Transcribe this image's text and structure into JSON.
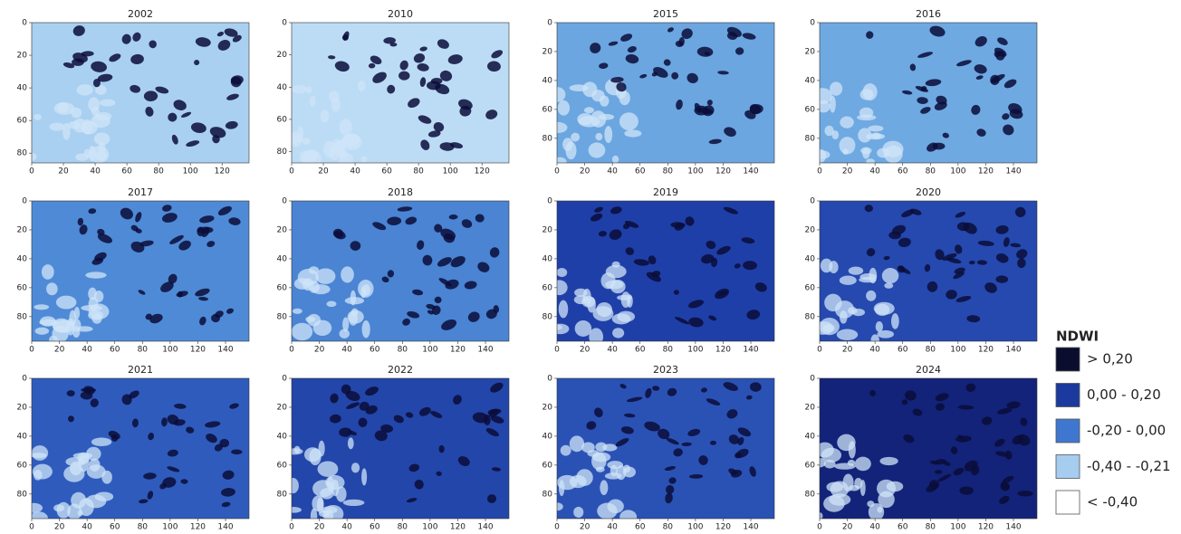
{
  "chart_data": [
    {
      "type": "image",
      "title": "2002",
      "color": "#a9d0f0",
      "xlim": [
        0,
        137
      ],
      "ylim": [
        0,
        86
      ],
      "xticks": [
        0,
        20,
        40,
        60,
        80,
        100,
        120
      ],
      "yticks": [
        0,
        20,
        40,
        60,
        80
      ]
    },
    {
      "type": "image",
      "title": "2010",
      "color": "#bcdcf5",
      "xlim": [
        0,
        137
      ],
      "ylim": [
        0,
        87
      ],
      "xticks": [
        0,
        20,
        40,
        60,
        80,
        100,
        120
      ],
      "yticks": [
        0,
        20,
        40,
        60,
        80
      ]
    },
    {
      "type": "image",
      "title": "2015",
      "color": "#6ba6e0",
      "xlim": [
        0,
        157
      ],
      "ylim": [
        0,
        97
      ],
      "xticks": [
        0,
        20,
        40,
        60,
        80,
        100,
        120,
        140
      ],
      "yticks": [
        0,
        20,
        40,
        60,
        80
      ]
    },
    {
      "type": "image",
      "title": "2016",
      "color": "#6fa9e2",
      "xlim": [
        0,
        157
      ],
      "ylim": [
        0,
        97
      ],
      "xticks": [
        0,
        20,
        40,
        60,
        80,
        100,
        120,
        140
      ],
      "yticks": [
        0,
        20,
        40,
        60,
        80
      ]
    },
    {
      "type": "image",
      "title": "2017",
      "color": "#4f8ad6",
      "xlim": [
        0,
        157
      ],
      "ylim": [
        0,
        97
      ],
      "xticks": [
        0,
        20,
        40,
        60,
        80,
        100,
        120,
        140
      ],
      "yticks": [
        0,
        20,
        40,
        60,
        80
      ]
    },
    {
      "type": "image",
      "title": "2018",
      "color": "#4a84d3",
      "xlim": [
        0,
        157
      ],
      "ylim": [
        0,
        97
      ],
      "xticks": [
        0,
        20,
        40,
        60,
        80,
        100,
        120,
        140
      ],
      "yticks": [
        0,
        20,
        40,
        60,
        80
      ]
    },
    {
      "type": "image",
      "title": "2019",
      "color": "#1f3fa8",
      "xlim": [
        0,
        157
      ],
      "ylim": [
        0,
        97
      ],
      "xticks": [
        0,
        20,
        40,
        60,
        80,
        100,
        120,
        140
      ],
      "yticks": [
        0,
        20,
        40,
        60,
        80
      ]
    },
    {
      "type": "image",
      "title": "2020",
      "color": "#2549ae",
      "xlim": [
        0,
        157
      ],
      "ylim": [
        0,
        97
      ],
      "xticks": [
        0,
        20,
        40,
        60,
        80,
        100,
        120,
        140
      ],
      "yticks": [
        0,
        20,
        40,
        60,
        80
      ]
    },
    {
      "type": "image",
      "title": "2021",
      "color": "#2f5cbc",
      "xlim": [
        0,
        157
      ],
      "ylim": [
        0,
        97
      ],
      "xticks": [
        0,
        20,
        40,
        60,
        80,
        100,
        120,
        140
      ],
      "yticks": [
        0,
        20,
        40,
        60,
        80
      ]
    },
    {
      "type": "image",
      "title": "2022",
      "color": "#2346aa",
      "xlim": [
        0,
        157
      ],
      "ylim": [
        0,
        97
      ],
      "xticks": [
        0,
        20,
        40,
        60,
        80,
        100,
        120,
        140
      ],
      "yticks": [
        0,
        20,
        40,
        60,
        80
      ]
    },
    {
      "type": "image",
      "title": "2023",
      "color": "#2a52b5",
      "xlim": [
        0,
        157
      ],
      "ylim": [
        0,
        97
      ],
      "xticks": [
        0,
        20,
        40,
        60,
        80,
        100,
        120,
        140
      ],
      "yticks": [
        0,
        20,
        40,
        60,
        80
      ]
    },
    {
      "type": "image",
      "title": "2024",
      "color": "#13237a",
      "xlim": [
        0,
        157
      ],
      "ylim": [
        0,
        97
      ],
      "xticks": [
        0,
        20,
        40,
        60,
        80,
        100,
        120,
        140
      ],
      "yticks": [
        0,
        20,
        40,
        60,
        80
      ]
    }
  ],
  "legend": {
    "title": "NDWI",
    "items": [
      {
        "label": "> 0,20",
        "color": "#0b0d2e"
      },
      {
        "label": "0,00 - 0,20",
        "color": "#1c3a9e"
      },
      {
        "label": "-0,20 - 0,00",
        "color": "#3f76cf"
      },
      {
        "label": "-0,40 - -0,21",
        "color": "#a6ccef"
      },
      {
        "label": "< -0,40",
        "color": "#ffffff"
      }
    ]
  }
}
